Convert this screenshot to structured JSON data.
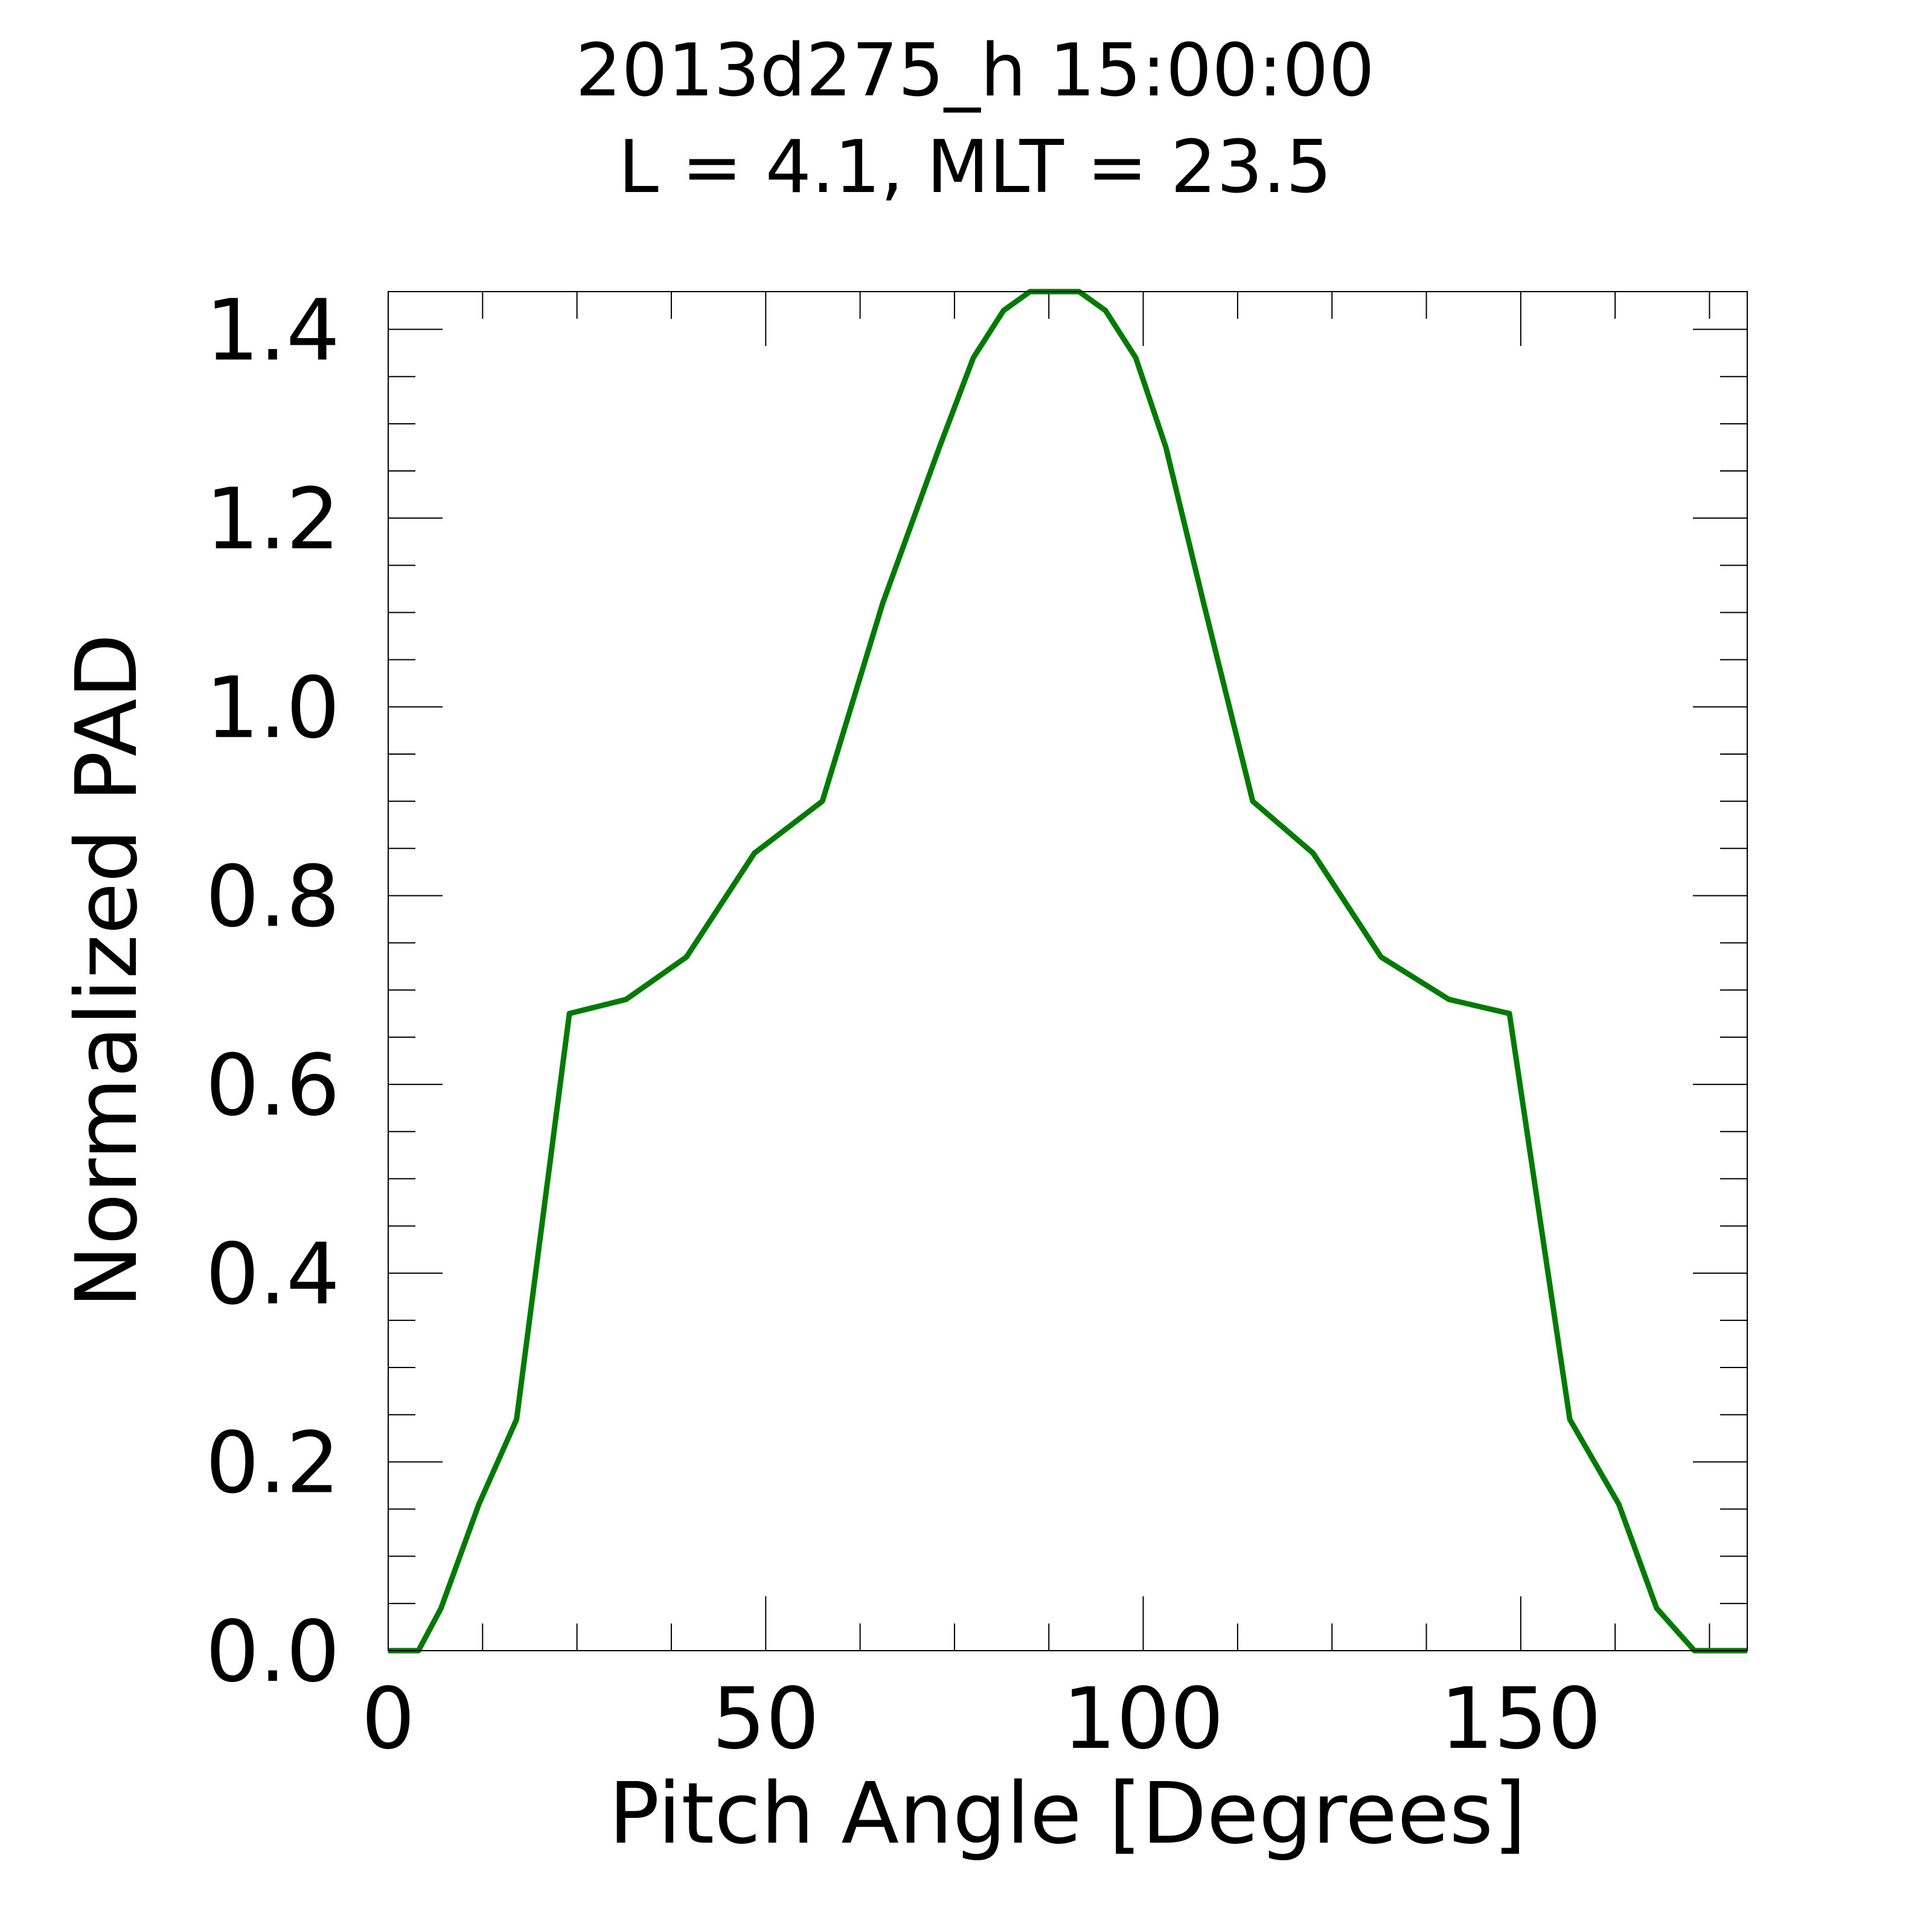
{
  "chart_data": {
    "type": "line",
    "title": "2013d275_h  15:00:00",
    "subtitle": "L = 4.1, MLT = 23.5",
    "xlabel": "Pitch Angle [Degrees]",
    "ylabel": "Normalized PAD",
    "xlim": [
      0,
      180
    ],
    "ylim": [
      0,
      1.44
    ],
    "xticks": [
      0,
      50,
      100,
      150
    ],
    "xtick_labels": [
      "0",
      "50",
      "100",
      "150"
    ],
    "yticks": [
      0.0,
      0.2,
      0.4,
      0.6,
      0.8,
      1.0,
      1.2,
      1.4
    ],
    "ytick_labels": [
      "0.0",
      "0.2",
      "0.4",
      "0.6",
      "0.8",
      "1.0",
      "1.2",
      "1.4"
    ],
    "grid": false,
    "series": [
      {
        "color": "#007a00",
        "x": [
          0,
          4,
          7,
          12,
          17,
          24,
          31.5,
          39.5,
          48.5,
          57.5,
          65.5,
          73,
          77.5,
          81.5,
          85,
          89,
          91.5,
          95,
          99,
          103,
          108,
          114.5,
          122.5,
          131.5,
          140.5,
          148.5,
          156.5,
          163,
          168,
          173,
          176,
          180
        ],
        "y": [
          0,
          0,
          0.045,
          0.155,
          0.245,
          0.675,
          0.69,
          0.735,
          0.845,
          0.9,
          1.11,
          1.275,
          1.37,
          1.42,
          1.44,
          1.44,
          1.44,
          1.42,
          1.37,
          1.275,
          1.11,
          0.9,
          0.845,
          0.735,
          0.69,
          0.675,
          0.245,
          0.155,
          0.045,
          0,
          0,
          0
        ]
      }
    ]
  },
  "colors": {
    "line": "#007a00",
    "axes": "#000000",
    "background": "#ffffff"
  }
}
